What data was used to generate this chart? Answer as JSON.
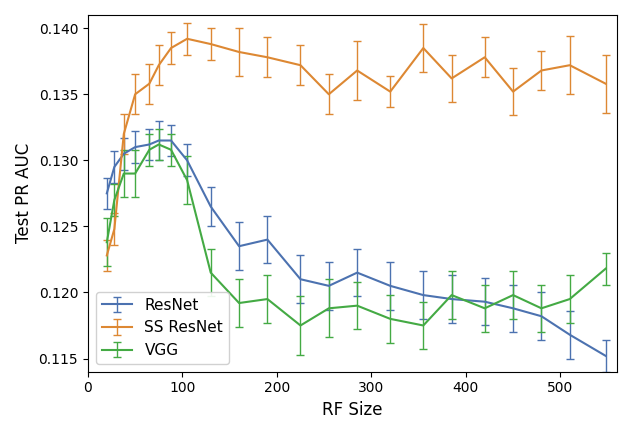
{
  "title": "",
  "xlabel": "RF Size",
  "ylabel": "Test PR AUC",
  "xlim": [
    0,
    560
  ],
  "ylim": [
    0.114,
    0.141
  ],
  "yticks": [
    0.115,
    0.12,
    0.125,
    0.13,
    0.135,
    0.14
  ],
  "xticks": [
    0,
    100,
    200,
    300,
    400,
    500
  ],
  "resnet": {
    "label": "ResNet",
    "color": "#4c72b0",
    "x": [
      20,
      28,
      38,
      50,
      65,
      75,
      88,
      105,
      130,
      160,
      190,
      225,
      255,
      285,
      320,
      355,
      385,
      420,
      450,
      480,
      510,
      548
    ],
    "y": [
      0.1275,
      0.1295,
      0.1305,
      0.131,
      0.1312,
      0.1315,
      0.1315,
      0.13,
      0.1265,
      0.1235,
      0.124,
      0.121,
      0.1205,
      0.1215,
      0.1205,
      0.1198,
      0.1195,
      0.1193,
      0.1188,
      0.1182,
      0.1168,
      0.1152
    ],
    "yerr": [
      0.0012,
      0.0012,
      0.0012,
      0.0012,
      0.0012,
      0.0015,
      0.0012,
      0.0012,
      0.0015,
      0.0018,
      0.0018,
      0.0018,
      0.0018,
      0.0018,
      0.0018,
      0.0018,
      0.0018,
      0.0018,
      0.0018,
      0.0018,
      0.0018,
      0.0012
    ]
  },
  "ss_resnet": {
    "label": "SS ResNet",
    "color": "#dd8833",
    "x": [
      20,
      28,
      38,
      50,
      65,
      75,
      88,
      105,
      130,
      160,
      190,
      225,
      255,
      285,
      320,
      355,
      385,
      420,
      450,
      480,
      510,
      548
    ],
    "y": [
      0.1228,
      0.1248,
      0.132,
      0.135,
      0.1358,
      0.1372,
      0.1385,
      0.1392,
      0.1388,
      0.1382,
      0.1378,
      0.1372,
      0.135,
      0.1368,
      0.1352,
      0.1385,
      0.1362,
      0.1378,
      0.1352,
      0.1368,
      0.1372,
      0.1358
    ],
    "yerr": [
      0.0012,
      0.0012,
      0.0015,
      0.0015,
      0.0015,
      0.0015,
      0.0012,
      0.0012,
      0.0012,
      0.0018,
      0.0015,
      0.0015,
      0.0015,
      0.0022,
      0.0012,
      0.0018,
      0.0018,
      0.0015,
      0.0018,
      0.0015,
      0.0022,
      0.0022
    ]
  },
  "vgg": {
    "label": "VGG",
    "color": "#44aa44",
    "x": [
      20,
      28,
      38,
      50,
      65,
      75,
      88,
      105,
      130,
      160,
      190,
      225,
      255,
      285,
      320,
      355,
      385,
      420,
      450,
      480,
      510,
      548
    ],
    "y": [
      0.1238,
      0.127,
      0.129,
      0.129,
      0.1308,
      0.1312,
      0.1308,
      0.1285,
      0.1215,
      0.1192,
      0.1195,
      0.1175,
      0.1188,
      0.119,
      0.118,
      0.1175,
      0.1198,
      0.1188,
      0.1198,
      0.1188,
      0.1195,
      0.1218
    ],
    "yerr": [
      0.0018,
      0.0012,
      0.0018,
      0.0018,
      0.0012,
      0.0012,
      0.0012,
      0.0018,
      0.0018,
      0.0018,
      0.0018,
      0.0022,
      0.0022,
      0.0018,
      0.0018,
      0.0018,
      0.0018,
      0.0018,
      0.0018,
      0.0018,
      0.0018,
      0.0012
    ]
  },
  "legend_loc": "lower left",
  "figsize": [
    6.32,
    4.34
  ],
  "dpi": 100
}
